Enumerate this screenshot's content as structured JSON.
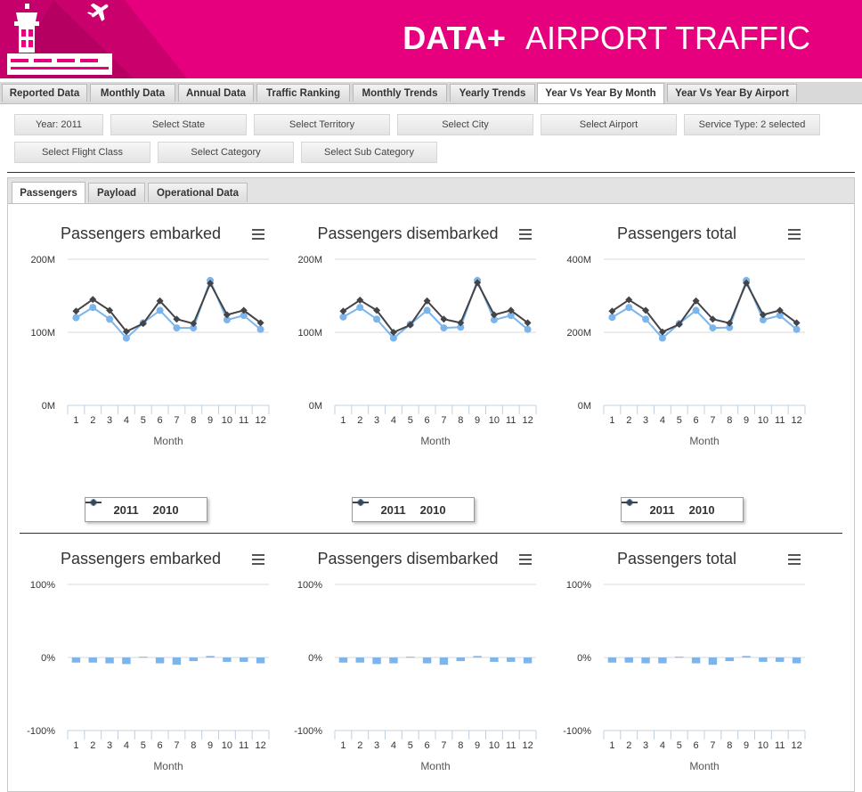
{
  "header": {
    "brand": "DATA+",
    "title": "AIRPORT TRAFFIC"
  },
  "main_tabs": [
    "Reported Data",
    "Monthly Data",
    "Annual Data",
    "Traffic Ranking",
    "Monthly Trends",
    "Yearly Trends",
    "Year Vs Year By Month",
    "Year Vs Year By Airport"
  ],
  "active_main_tab": "Year Vs Year By Month",
  "filters": {
    "row1": [
      "Year: 2011",
      "Select State",
      "Select Territory",
      "Select City",
      "Select Airport",
      "Service Type: 2 selected"
    ],
    "row2": [
      "Select Flight Class",
      "Select Category",
      "Select Sub Category"
    ]
  },
  "sub_tabs": [
    "Passengers",
    "Payload",
    "Operational Data"
  ],
  "active_sub_tab": "Passengers",
  "colors": {
    "header": "#e6007e",
    "series_2011": "#7cb5ec",
    "series_2010": "#434348"
  },
  "chart_data": [
    {
      "type": "line",
      "title": "Passengers embarked",
      "xlabel": "Month",
      "x": [
        1,
        2,
        3,
        4,
        5,
        6,
        7,
        8,
        9,
        10,
        11,
        12
      ],
      "yticks": [
        "0M",
        "100M",
        "200M"
      ],
      "ylim": [
        0,
        200
      ],
      "series": [
        {
          "name": "2011",
          "values": [
            120,
            134,
            118,
            92,
            113,
            130,
            106,
            106,
            171,
            117,
            123,
            104
          ]
        },
        {
          "name": "2010",
          "values": [
            129,
            145,
            130,
            101,
            112,
            143,
            118,
            112,
            167,
            124,
            130,
            113
          ]
        }
      ],
      "legend": "bottom"
    },
    {
      "type": "line",
      "title": "Passengers disembarked",
      "xlabel": "Month",
      "x": [
        1,
        2,
        3,
        4,
        5,
        6,
        7,
        8,
        9,
        10,
        11,
        12
      ],
      "yticks": [
        "0M",
        "100M",
        "200M"
      ],
      "ylim": [
        0,
        200
      ],
      "series": [
        {
          "name": "2011",
          "values": [
            121,
            134,
            118,
            92,
            111,
            130,
            106,
            107,
            171,
            117,
            123,
            104
          ]
        },
        {
          "name": "2010",
          "values": [
            129,
            144,
            130,
            100,
            110,
            143,
            118,
            113,
            168,
            124,
            130,
            113
          ]
        }
      ],
      "legend": "bottom"
    },
    {
      "type": "line",
      "title": "Passengers total",
      "xlabel": "Month",
      "x": [
        1,
        2,
        3,
        4,
        5,
        6,
        7,
        8,
        9,
        10,
        11,
        12
      ],
      "yticks": [
        "0M",
        "200M",
        "400M"
      ],
      "ylim": [
        0,
        400
      ],
      "series": [
        {
          "name": "2011",
          "values": [
            241,
            268,
            236,
            184,
            224,
            260,
            212,
            213,
            342,
            234,
            246,
            208
          ]
        },
        {
          "name": "2010",
          "values": [
            258,
            289,
            260,
            201,
            222,
            286,
            236,
            225,
            335,
            248,
            260,
            226
          ]
        }
      ],
      "legend": "bottom"
    },
    {
      "type": "bar",
      "title": "Passengers embarked",
      "xlabel": "Month",
      "categories": [
        1,
        2,
        3,
        4,
        5,
        6,
        7,
        8,
        9,
        10,
        11,
        12
      ],
      "yticks": [
        "-100%",
        "0%",
        "100%"
      ],
      "ylim": [
        -100,
        100
      ],
      "values": [
        -7,
        -7,
        -8,
        -9,
        1,
        -8,
        -10,
        -5,
        2,
        -6,
        -6,
        -8
      ]
    },
    {
      "type": "bar",
      "title": "Passengers disembarked",
      "xlabel": "Month",
      "categories": [
        1,
        2,
        3,
        4,
        5,
        6,
        7,
        8,
        9,
        10,
        11,
        12
      ],
      "yticks": [
        "-100%",
        "0%",
        "100%"
      ],
      "ylim": [
        -100,
        100
      ],
      "values": [
        -7,
        -7,
        -9,
        -8,
        1,
        -8,
        -10,
        -5,
        2,
        -6,
        -6,
        -8
      ]
    },
    {
      "type": "bar",
      "title": "Passengers total",
      "xlabel": "Month",
      "categories": [
        1,
        2,
        3,
        4,
        5,
        6,
        7,
        8,
        9,
        10,
        11,
        12
      ],
      "yticks": [
        "-100%",
        "0%",
        "100%"
      ],
      "ylim": [
        -100,
        100
      ],
      "values": [
        -7,
        -7,
        -8,
        -8,
        1,
        -8,
        -10,
        -5,
        2,
        -6,
        -6,
        -8
      ]
    }
  ]
}
